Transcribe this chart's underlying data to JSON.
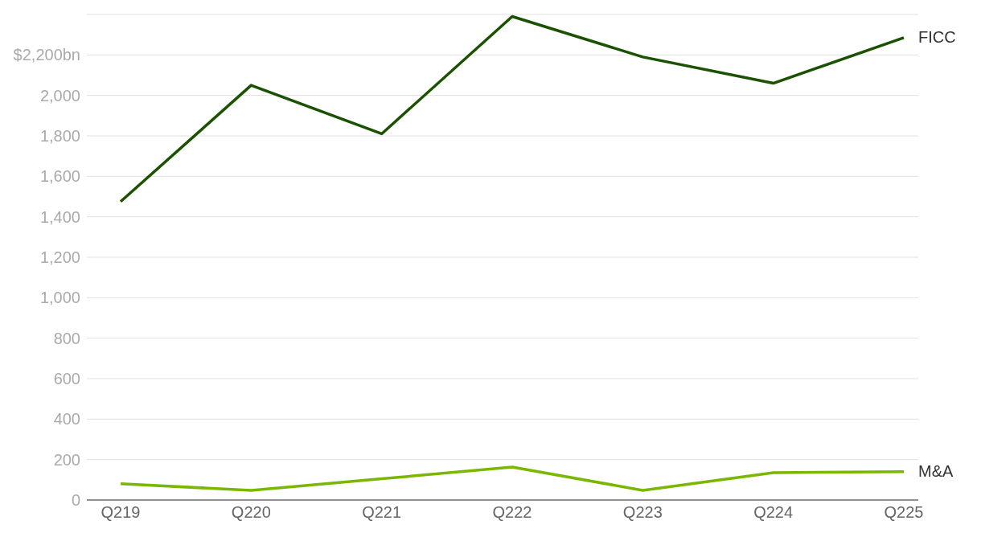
{
  "chart_data": {
    "type": "line",
    "categories": [
      "Q219",
      "Q220",
      "Q221",
      "Q222",
      "Q223",
      "Q224",
      "Q225"
    ],
    "series": [
      {
        "name": "FICC",
        "color": "#1a5200",
        "values": [
          1475,
          2050,
          1810,
          2390,
          2190,
          2060,
          2285
        ]
      },
      {
        "name": "M&A",
        "color": "#7ab800",
        "values": [
          80,
          48,
          105,
          163,
          48,
          135,
          140
        ]
      }
    ],
    "ylim": [
      0,
      2400
    ],
    "yticks": [
      0,
      200,
      400,
      600,
      800,
      {
        "value": 1000,
        "label": "1,000"
      },
      {
        "value": 1200,
        "label": "1,200"
      },
      {
        "value": 1400,
        "label": "1,400"
      },
      {
        "value": 1600,
        "label": "1,600"
      },
      {
        "value": 1800,
        "label": "1,800"
      },
      {
        "value": 2000,
        "label": "2,000"
      },
      {
        "value": 2200,
        "label": "$2,200bn"
      }
    ],
    "grid": "y",
    "legend": false,
    "marker": "none",
    "line_style": "solid"
  }
}
